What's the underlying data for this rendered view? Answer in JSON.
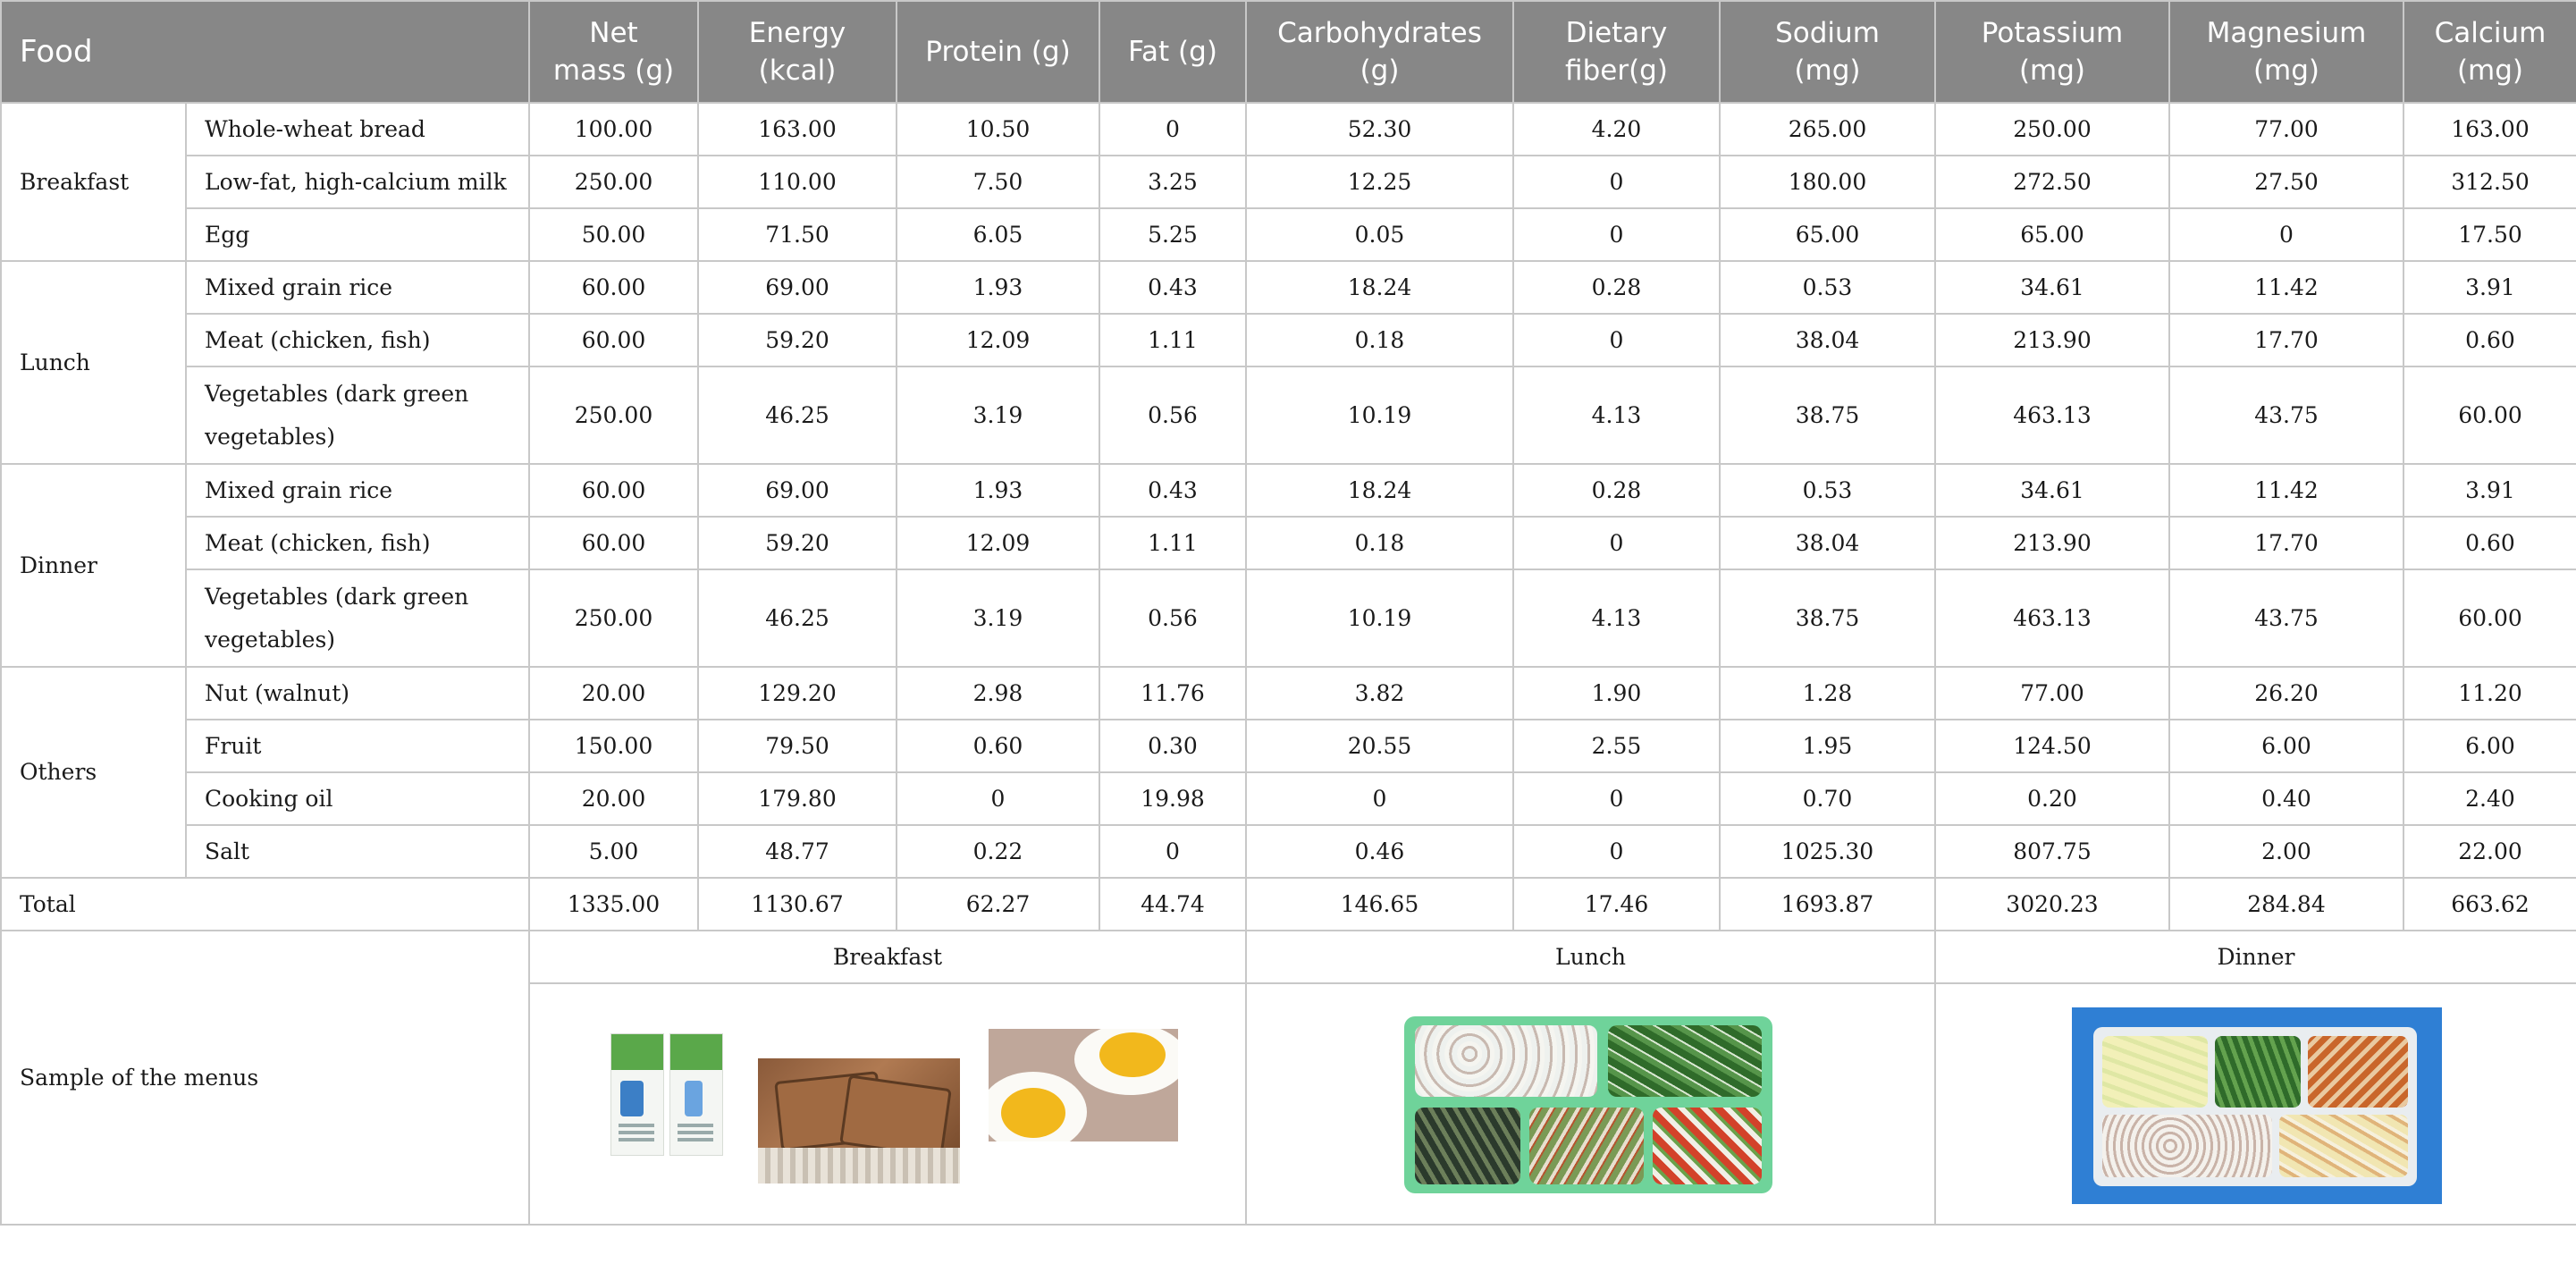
{
  "headers": [
    "Food",
    "Net mass (g)",
    "Energy (kcal)",
    "Protein (g)",
    "Fat (g)",
    "Carbohydrates (g)",
    "Dietary fiber(g)",
    "Sodium (mg)",
    "Potassium (mg)",
    "Magnesium (mg)",
    "Calcium (mg)"
  ],
  "header_lines": {
    "net_mass": [
      "Net",
      "mass (g)"
    ],
    "energy": [
      "Energy",
      "(kcal)"
    ],
    "carbohydrates": [
      "Carbohydrates",
      "(g)"
    ],
    "dietary_fiber": [
      "Dietary",
      "fiber(g)"
    ],
    "sodium": [
      "Sodium",
      "(mg)"
    ],
    "potassium": [
      "Potassium",
      "(mg)"
    ],
    "magnesium": [
      "Magnesium",
      "(mg)"
    ],
    "calcium": [
      "Calcium",
      "(mg)"
    ]
  },
  "meals": {
    "breakfast": {
      "label": "Breakfast",
      "rows": [
        {
          "item": "Whole-wheat bread",
          "values": [
            "100.00",
            "163.00",
            "10.50",
            "0",
            "52.30",
            "4.20",
            "265.00",
            "250.00",
            "77.00",
            "163.00"
          ]
        },
        {
          "item": "Low-fat, high-calcium milk",
          "values": [
            "250.00",
            "110.00",
            "7.50",
            "3.25",
            "12.25",
            "0",
            "180.00",
            "272.50",
            "27.50",
            "312.50"
          ]
        },
        {
          "item": "Egg",
          "values": [
            "50.00",
            "71.50",
            "6.05",
            "5.25",
            "0.05",
            "0",
            "65.00",
            "65.00",
            "0",
            "17.50"
          ]
        }
      ]
    },
    "lunch": {
      "label": "Lunch",
      "rows": [
        {
          "item": "Mixed grain rice",
          "values": [
            "60.00",
            "69.00",
            "1.93",
            "0.43",
            "18.24",
            "0.28",
            "0.53",
            "34.61",
            "11.42",
            "3.91"
          ]
        },
        {
          "item": "Meat (chicken, fish)",
          "values": [
            "60.00",
            "59.20",
            "12.09",
            "1.11",
            "0.18",
            "0",
            "38.04",
            "213.90",
            "17.70",
            "0.60"
          ]
        },
        {
          "item_line1": "Vegetables (dark green",
          "item_line2": "vegetables)",
          "values": [
            "250.00",
            "46.25",
            "3.19",
            "0.56",
            "10.19",
            "4.13",
            "38.75",
            "463.13",
            "43.75",
            "60.00"
          ]
        }
      ]
    },
    "dinner": {
      "label": "Dinner",
      "rows": [
        {
          "item": "Mixed grain rice",
          "values": [
            "60.00",
            "69.00",
            "1.93",
            "0.43",
            "18.24",
            "0.28",
            "0.53",
            "34.61",
            "11.42",
            "3.91"
          ]
        },
        {
          "item": "Meat (chicken, fish)",
          "values": [
            "60.00",
            "59.20",
            "12.09",
            "1.11",
            "0.18",
            "0",
            "38.04",
            "213.90",
            "17.70",
            "0.60"
          ]
        },
        {
          "item_line1": "Vegetables (dark green",
          "item_line2": "vegetables)",
          "values": [
            "250.00",
            "46.25",
            "3.19",
            "0.56",
            "10.19",
            "4.13",
            "38.75",
            "463.13",
            "43.75",
            "60.00"
          ]
        }
      ]
    },
    "others": {
      "label": "Others",
      "rows": [
        {
          "item": "Nut (walnut)",
          "values": [
            "20.00",
            "129.20",
            "2.98",
            "11.76",
            "3.82",
            "1.90",
            "1.28",
            "77.00",
            "26.20",
            "11.20"
          ]
        },
        {
          "item": "Fruit",
          "values": [
            "150.00",
            "79.50",
            "0.60",
            "0.30",
            "20.55",
            "2.55",
            "1.95",
            "124.50",
            "6.00",
            "6.00"
          ]
        },
        {
          "item": "Cooking oil",
          "values": [
            "20.00",
            "179.80",
            "0",
            "19.98",
            "0",
            "0",
            "0.70",
            "0.20",
            "0.40",
            "2.40"
          ]
        },
        {
          "item": "Salt",
          "values": [
            "5.00",
            "48.77",
            "0.22",
            "0",
            "0.46",
            "0",
            "1025.30",
            "807.75",
            "2.00",
            "22.00"
          ]
        }
      ]
    }
  },
  "total": {
    "label": "Total",
    "values": [
      "1335.00",
      "1130.67",
      "62.27",
      "44.74",
      "146.65",
      "17.46",
      "1693.87",
      "3020.23",
      "284.84",
      "663.62"
    ]
  },
  "sample": {
    "label": "Sample of the menus",
    "columns": [
      "Breakfast",
      "Lunch",
      "Dinner"
    ],
    "images": {
      "breakfast": [
        "milk-carton-image",
        "whole-wheat-bread-image",
        "boiled-egg-image"
      ],
      "lunch": "lunch-tray-image",
      "dinner": "dinner-box-image"
    }
  }
}
